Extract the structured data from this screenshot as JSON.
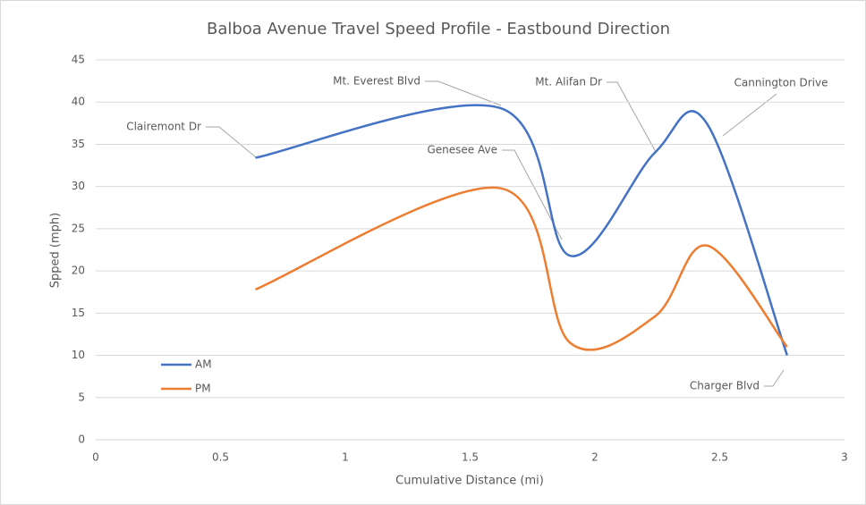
{
  "chart_data": {
    "type": "line",
    "title": "Balboa Avenue Travel Speed Profile - Eastbound Direction",
    "x_label": "Cumulative Distance (mi)",
    "y_label": "Spped (mph)",
    "x": [
      0.64,
      1.62,
      1.9,
      2.24,
      2.45,
      2.77
    ],
    "series": [
      {
        "name": "AM",
        "color": "#4472c4",
        "values": [
          33.4,
          39.3,
          21.8,
          34,
          37.4,
          10
        ]
      },
      {
        "name": "PM",
        "color": "#ed7d31",
        "values": [
          17.8,
          29.8,
          11.5,
          14.6,
          23,
          11
        ]
      }
    ],
    "annotations": [
      "Clairemont Dr",
      "Mt. Everest Blvd",
      "Genesee Ave",
      "Mt. Alifan Dr",
      "Cannington Drive",
      "Charger Blvd"
    ],
    "xlim": [
      0,
      3
    ],
    "xticks": [
      0,
      0.5,
      1,
      1.5,
      2,
      2.5,
      3
    ],
    "ylim": [
      0,
      45
    ],
    "yticks": [
      0,
      5,
      10,
      15,
      20,
      25,
      30,
      35,
      40,
      45
    ],
    "grid": true,
    "legend": "lower left"
  }
}
